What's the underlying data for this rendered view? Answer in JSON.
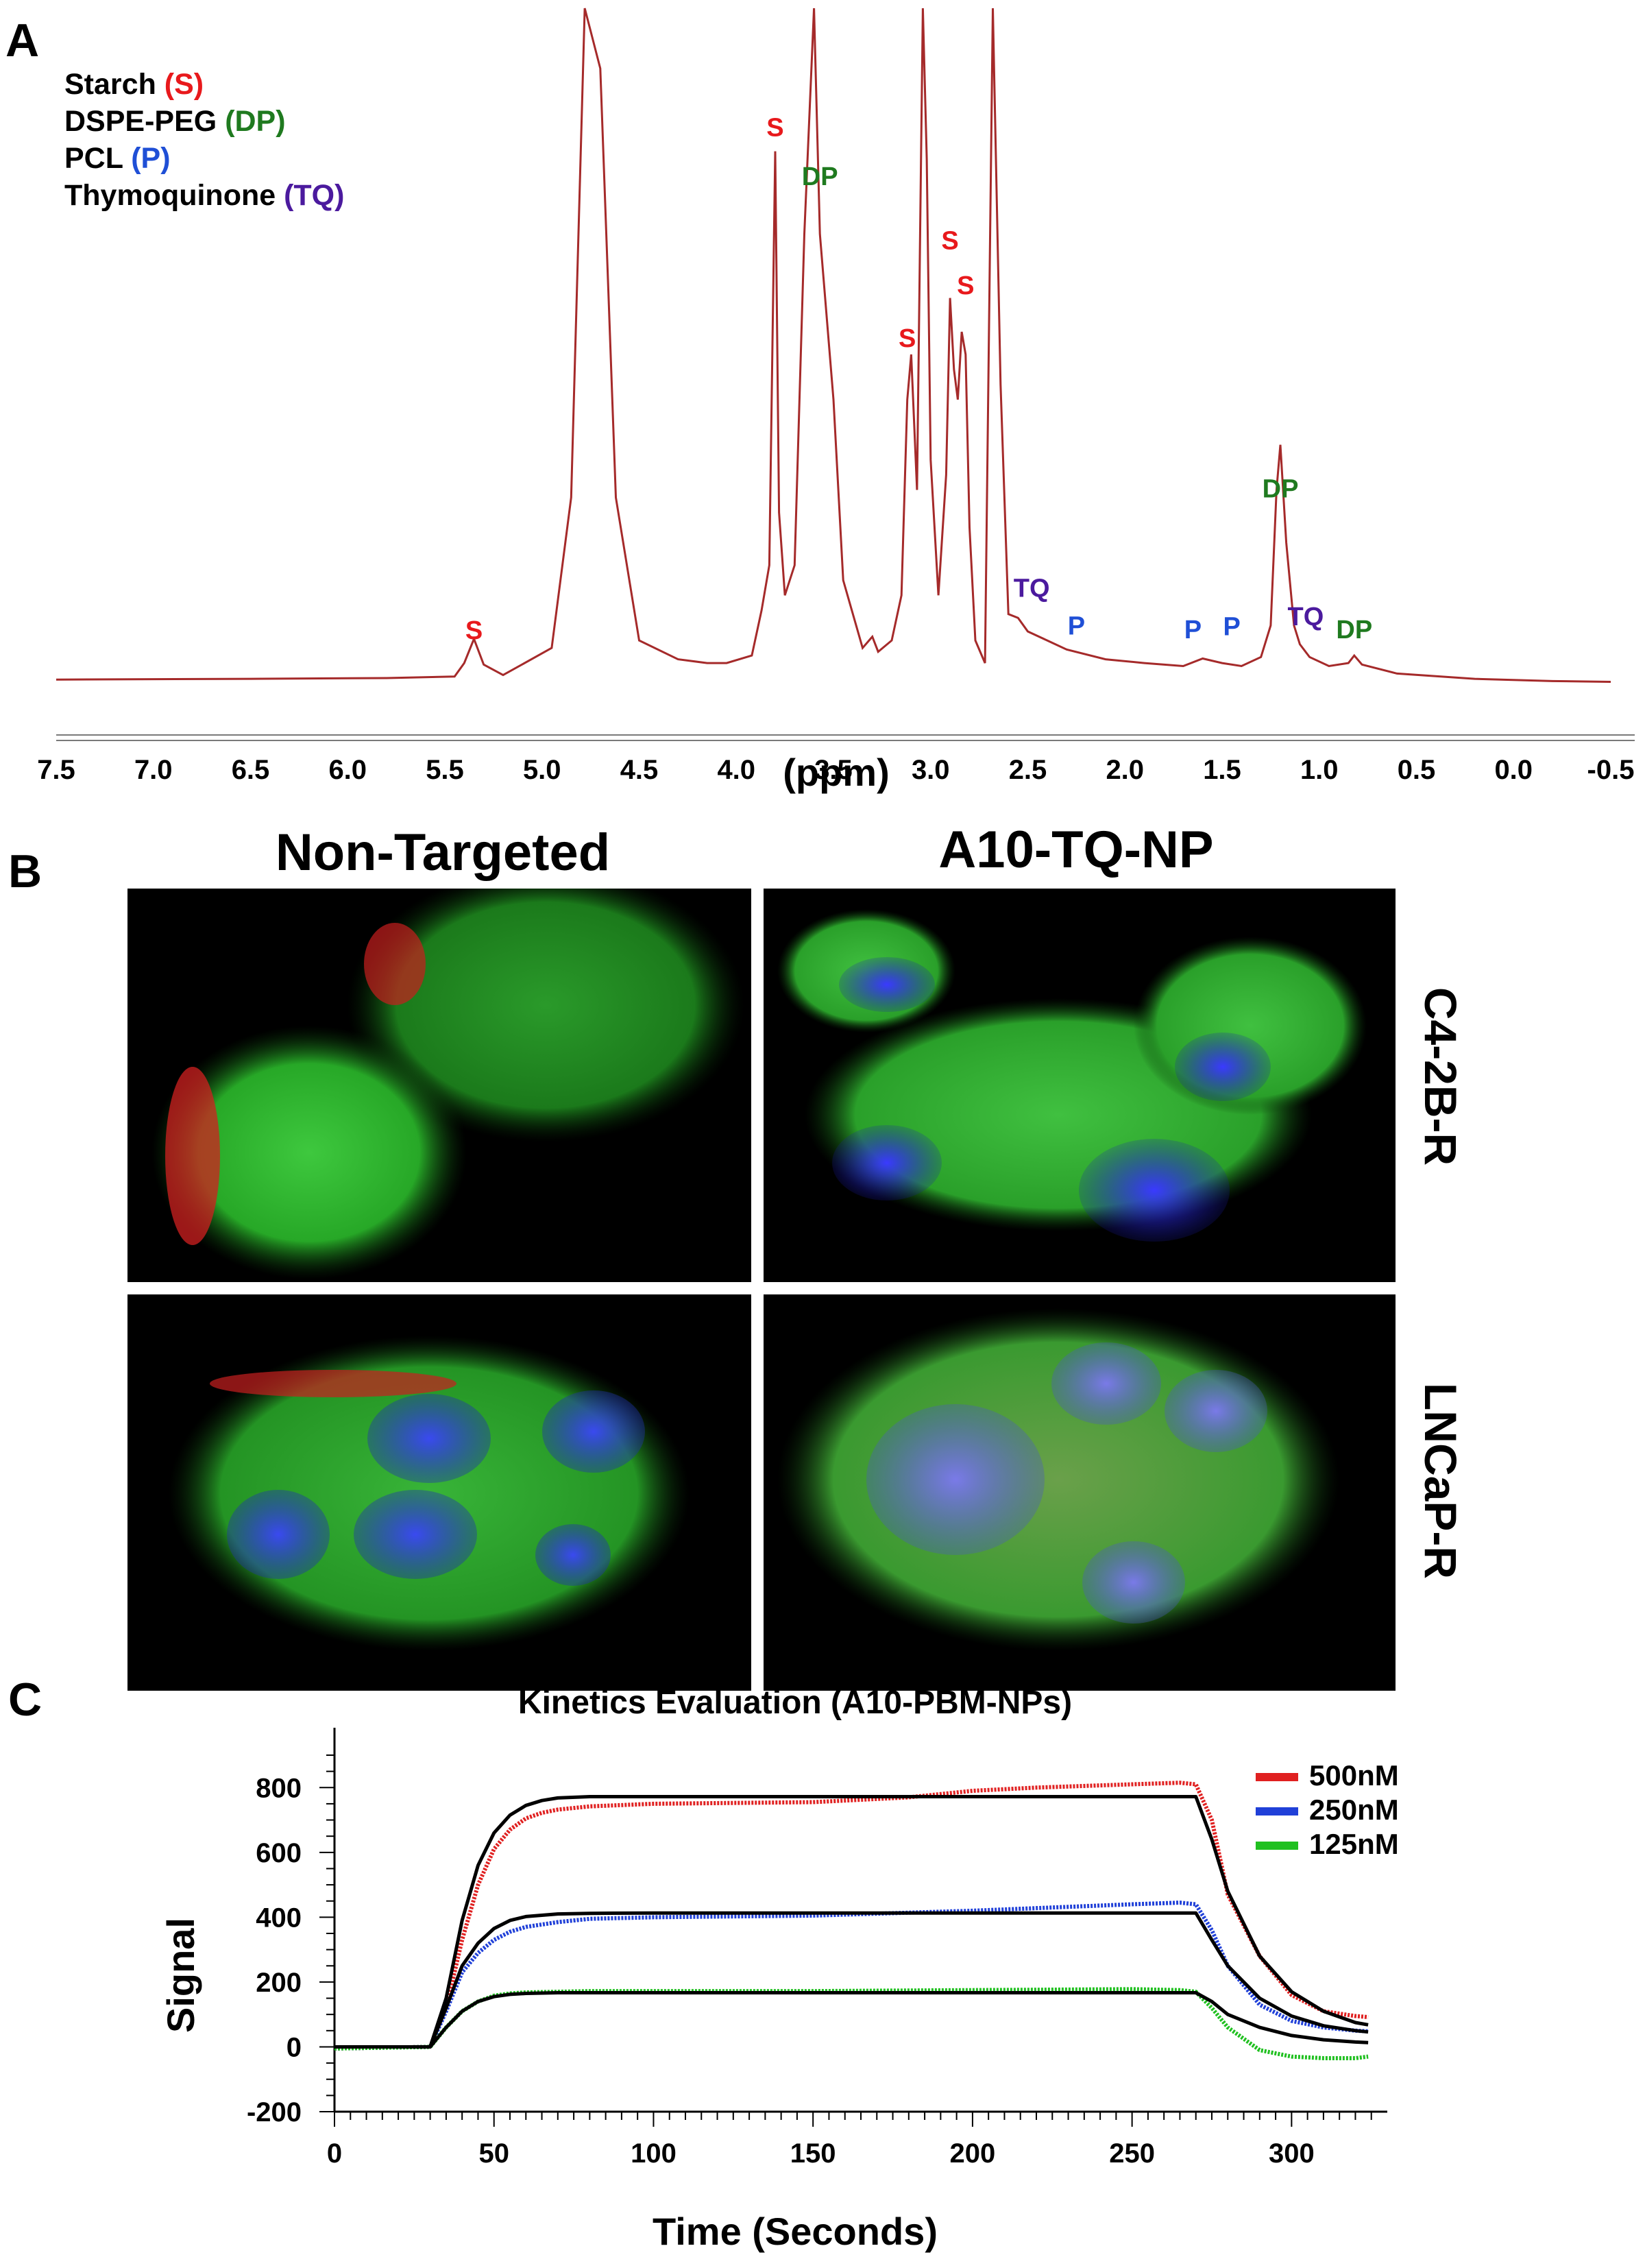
{
  "panel_a": {
    "letter": "A",
    "legend": [
      {
        "name": "Starch",
        "code": "(S)",
        "color": "#e8191c"
      },
      {
        "name": "DSPE-PEG",
        "code": "(DP)",
        "color": "#1f7a1f"
      },
      {
        "name": "PCL",
        "code": "(P)",
        "color": "#1f4fd6"
      },
      {
        "name": "Thymoquinone",
        "code": "(TQ)",
        "color": "#4b1a9e"
      }
    ],
    "xlabel": "(ppm)"
  },
  "panel_b": {
    "letter": "B",
    "columns": [
      "Non-Targeted",
      "A10-TQ-NP"
    ],
    "rows": [
      "C4-2B-R",
      "LNCaP-R"
    ]
  },
  "panel_c": {
    "letter": "C",
    "title": "Kinetics Evaluation (A10-PBM-NPs)",
    "xlabel": "Time (Seconds)",
    "ylabel": "Signal"
  },
  "colors": {
    "spectrum": "#a52a2a",
    "s": "#e8191c",
    "dp": "#1f7a1f",
    "p": "#1f4fd6",
    "tq": "#4b1a9e",
    "red": "#e02020",
    "blue": "#2040d8",
    "green": "#20c020",
    "fit": "#000000"
  },
  "chart_data": [
    {
      "type": "line",
      "x": [
        7.5,
        6.5,
        5.8,
        5.45,
        5.4,
        5.35,
        5.3,
        5.2,
        4.95,
        4.85,
        4.78,
        4.7,
        4.62,
        4.5,
        4.3,
        4.15,
        4.05,
        3.92,
        3.87,
        3.83,
        3.8,
        3.78,
        3.75,
        3.7,
        3.65,
        3.6,
        3.57,
        3.5,
        3.45,
        3.35,
        3.3,
        3.27,
        3.2,
        3.15,
        3.12,
        3.1,
        3.07,
        3.04,
        3.02,
        3.0,
        2.96,
        2.92,
        2.9,
        2.88,
        2.86,
        2.84,
        2.82,
        2.8,
        2.77,
        2.72,
        2.68,
        2.64,
        2.6,
        2.55,
        2.5,
        2.4,
        2.3,
        2.1,
        1.9,
        1.7,
        1.6,
        1.5,
        1.4,
        1.3,
        1.25,
        1.22,
        1.2,
        1.17,
        1.13,
        1.1,
        1.05,
        0.95,
        0.85,
        0.82,
        0.78,
        0.6,
        0.2,
        -0.2,
        -0.5
      ],
      "y": [
        8,
        9,
        10,
        12,
        30,
        62,
        28,
        14,
        50,
        250,
        900,
        820,
        250,
        60,
        35,
        30,
        30,
        40,
        100,
        160,
        710,
        230,
        120,
        160,
        600,
        900,
        600,
        380,
        140,
        50,
        65,
        45,
        60,
        120,
        380,
        440,
        260,
        900,
        700,
        300,
        120,
        280,
        515,
        420,
        380,
        470,
        440,
        210,
        60,
        30,
        900,
        400,
        95,
        90,
        72,
        60,
        48,
        35,
        30,
        26,
        36,
        30,
        26,
        38,
        80,
        260,
        320,
        190,
        80,
        55,
        38,
        26,
        30,
        40,
        28,
        16,
        9,
        6,
        5
      ],
      "xlabel": "(ppm)",
      "ylabel": "",
      "title": "",
      "x_ticks": [
        7.5,
        7.0,
        6.5,
        6.0,
        5.5,
        5.0,
        4.5,
        4.0,
        3.5,
        3.0,
        2.5,
        2.0,
        1.5,
        1.0,
        0.5,
        0.0,
        -0.5
      ],
      "x_tick_labels": [
        "7.5",
        "7.0",
        "6.5",
        "6.0",
        "5.5",
        "5.0",
        "4.5",
        "4.0",
        "3.5",
        "3.0",
        "2.5",
        "2.0",
        "1.5",
        "1.0",
        "0.5",
        "0.0",
        "-0.5"
      ],
      "xlim": [
        7.5,
        -0.5
      ],
      "ylim": [
        0,
        900
      ],
      "reversed_x": true,
      "grid": false,
      "annotations": [
        {
          "text": "S",
          "x": 5.35,
          "y": 62,
          "color": "#e8191c"
        },
        {
          "text": "S",
          "x": 3.8,
          "y": 730,
          "color": "#e8191c"
        },
        {
          "text": "DP",
          "x": 3.57,
          "y": 665,
          "color": "#1f7a1f"
        },
        {
          "text": "S",
          "x": 3.12,
          "y": 450,
          "color": "#e8191c"
        },
        {
          "text": "S",
          "x": 2.9,
          "y": 580,
          "color": "#e8191c"
        },
        {
          "text": "S",
          "x": 2.82,
          "y": 520,
          "color": "#e8191c"
        },
        {
          "text": "TQ",
          "x": 2.48,
          "y": 118,
          "color": "#4b1a9e"
        },
        {
          "text": "P",
          "x": 2.25,
          "y": 68,
          "color": "#1f4fd6"
        },
        {
          "text": "P",
          "x": 1.65,
          "y": 63,
          "color": "#1f4fd6"
        },
        {
          "text": "P",
          "x": 1.45,
          "y": 67,
          "color": "#1f4fd6"
        },
        {
          "text": "DP",
          "x": 1.2,
          "y": 250,
          "color": "#1f7a1f"
        },
        {
          "text": "TQ",
          "x": 1.07,
          "y": 80,
          "color": "#4b1a9e"
        },
        {
          "text": "DP",
          "x": 0.82,
          "y": 63,
          "color": "#1f7a1f"
        }
      ]
    },
    {
      "type": "line",
      "title": "Kinetics Evaluation (A10-PBM-NPs)",
      "xlabel": "Time (Seconds)",
      "ylabel": "Signal",
      "xlim": [
        0,
        330
      ],
      "ylim": [
        -200,
        900
      ],
      "x_ticks": [
        0,
        50,
        100,
        150,
        200,
        250,
        300
      ],
      "y_ticks": [
        -200,
        0,
        200,
        400,
        600,
        800
      ],
      "legend_position": "top-right",
      "grid": false,
      "series": [
        {
          "name": "500nM",
          "color": "#e02020",
          "x": [
            0,
            30,
            35,
            40,
            45,
            50,
            55,
            60,
            65,
            70,
            80,
            100,
            150,
            180,
            200,
            220,
            250,
            265,
            270,
            275,
            280,
            290,
            300,
            310,
            320,
            324
          ],
          "y": [
            -5,
            0,
            120,
            330,
            500,
            610,
            670,
            705,
            722,
            732,
            742,
            750,
            755,
            770,
            790,
            800,
            810,
            815,
            810,
            700,
            470,
            280,
            160,
            110,
            95,
            92
          ]
        },
        {
          "name": "250nM",
          "color": "#2040d8",
          "x": [
            0,
            30,
            35,
            40,
            45,
            50,
            55,
            60,
            70,
            80,
            100,
            150,
            200,
            250,
            265,
            270,
            275,
            280,
            290,
            300,
            310,
            320,
            324
          ],
          "y": [
            -5,
            0,
            110,
            230,
            290,
            330,
            355,
            370,
            385,
            395,
            400,
            405,
            420,
            440,
            445,
            440,
            360,
            250,
            130,
            80,
            60,
            50,
            48
          ]
        },
        {
          "name": "125nM",
          "color": "#20c020",
          "x": [
            0,
            30,
            35,
            40,
            45,
            50,
            55,
            60,
            70,
            80,
            100,
            150,
            200,
            250,
            265,
            270,
            275,
            280,
            290,
            300,
            310,
            320,
            324
          ],
          "y": [
            -5,
            0,
            60,
            110,
            140,
            158,
            165,
            168,
            170,
            172,
            172,
            172,
            175,
            178,
            175,
            170,
            120,
            60,
            -10,
            -30,
            -35,
            -35,
            -30
          ]
        },
        {
          "name": "fit-500",
          "color": "#000000",
          "x": [
            0,
            30,
            35,
            40,
            45,
            50,
            55,
            60,
            65,
            70,
            80,
            100,
            150,
            200,
            250,
            270,
            275,
            280,
            290,
            300,
            310,
            320,
            324
          ],
          "y": [
            0,
            0,
            150,
            390,
            560,
            660,
            715,
            745,
            760,
            768,
            772,
            772,
            772,
            772,
            772,
            772,
            640,
            480,
            280,
            170,
            110,
            75,
            68
          ]
        },
        {
          "name": "fit-250",
          "color": "#000000",
          "x": [
            0,
            30,
            35,
            40,
            45,
            50,
            55,
            60,
            70,
            80,
            100,
            150,
            200,
            250,
            270,
            275,
            280,
            290,
            300,
            310,
            320,
            324
          ],
          "y": [
            0,
            0,
            120,
            250,
            320,
            365,
            390,
            402,
            410,
            412,
            413,
            413,
            413,
            413,
            413,
            330,
            250,
            150,
            95,
            65,
            50,
            46
          ]
        },
        {
          "name": "fit-125",
          "color": "#000000",
          "x": [
            0,
            30,
            35,
            40,
            45,
            50,
            55,
            60,
            70,
            80,
            100,
            150,
            200,
            250,
            270,
            275,
            280,
            290,
            300,
            310,
            320,
            324
          ],
          "y": [
            0,
            0,
            60,
            110,
            140,
            155,
            162,
            165,
            167,
            167,
            167,
            167,
            167,
            167,
            167,
            140,
            100,
            60,
            35,
            22,
            15,
            13
          ]
        }
      ],
      "legend": [
        "500nM",
        "250nM",
        "125nM"
      ]
    }
  ]
}
